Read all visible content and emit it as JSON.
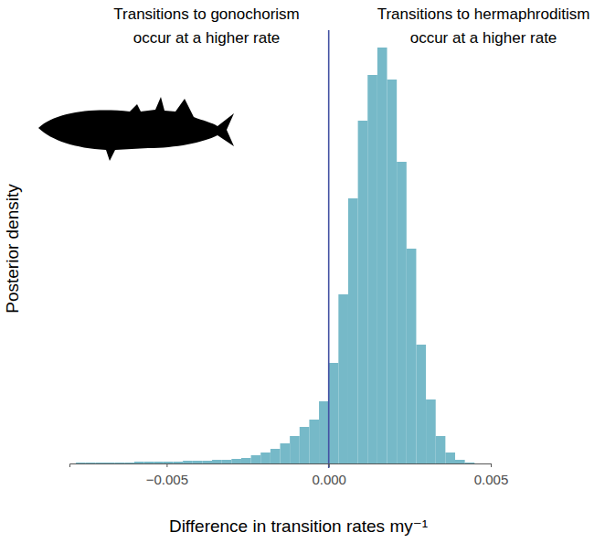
{
  "chart_data": {
    "type": "histogram",
    "x_label": "Difference in transition rates my⁻¹",
    "y_label": "Posterior density",
    "annotations": [
      {
        "text": [
          "Transitions to gonochorism",
          "occur at a higher rate"
        ]
      },
      {
        "text": [
          "Transitions to hermaphroditism",
          "occur at a higher rate"
        ]
      }
    ],
    "bins": [
      -0.0078,
      -0.0075,
      -0.0072,
      -0.0069,
      -0.0066,
      -0.0063,
      -0.006,
      -0.0057,
      -0.0054,
      -0.0051,
      -0.0048,
      -0.0045,
      -0.0042,
      -0.0039,
      -0.0036,
      -0.0033,
      -0.003,
      -0.0027,
      -0.0024,
      -0.0021,
      -0.0018,
      -0.0015,
      -0.0012,
      -0.0009,
      -0.0006,
      -0.0003,
      0,
      0.0003,
      0.0006,
      0.0009,
      0.0012,
      0.0015,
      0.0018,
      0.0021,
      0.0024,
      0.0027,
      0.003,
      0.0033,
      0.0036,
      0.0039,
      0.0042,
      0.0045
    ],
    "values": [
      1,
      1,
      1,
      1,
      1,
      1,
      2,
      2,
      2,
      2,
      2,
      3,
      3,
      3,
      4,
      4,
      5,
      6,
      9,
      12,
      16,
      22,
      30,
      40,
      48,
      68,
      110,
      185,
      290,
      375,
      425,
      455,
      420,
      330,
      235,
      130,
      70,
      30,
      12,
      4,
      1
    ],
    "color": "#76b9c8",
    "xlim": [
      -0.008,
      0.005
    ],
    "xticks": [
      {
        "value": -0.005,
        "label": "−0.005"
      },
      {
        "value": 0,
        "label": "0.000"
      },
      {
        "value": 0.005,
        "label": "0.005"
      }
    ],
    "ylim": [
      0,
      460
    ],
    "tick_labels": "x",
    "grid": false,
    "reference_lines": [
      {
        "x": 0,
        "color": "#4352a3"
      }
    ]
  }
}
